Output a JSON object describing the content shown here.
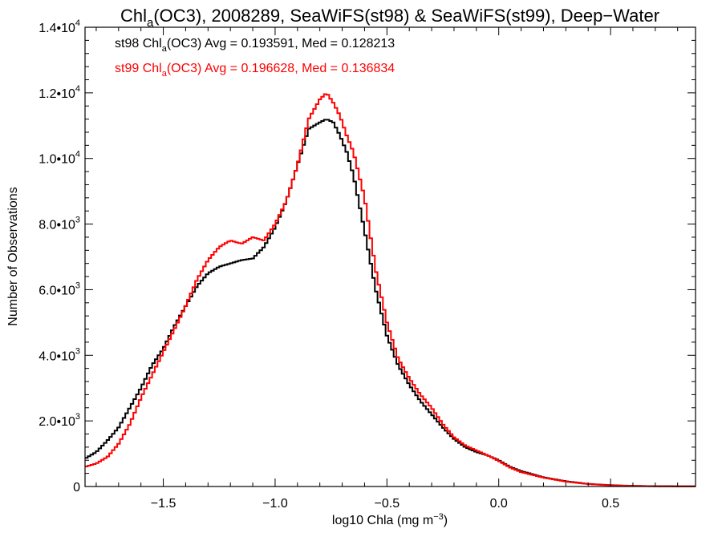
{
  "chart_data": {
    "type": "line",
    "title": {
      "pre": "Chl",
      "sub": "a",
      "post": "(OC3), 2008289, SeaWiFS(st98) & SeaWiFS(st99), Deep−Water"
    },
    "xlabel": {
      "pre": "log10 Chla (mg m",
      "sup": "−3",
      "post": ")"
    },
    "ylabel": "Number of Observations",
    "xlim": [
      -1.85,
      0.88
    ],
    "ylim": [
      0,
      14000
    ],
    "x_ticks": [
      {
        "value": -1.5,
        "label": "−1.5"
      },
      {
        "value": -1.0,
        "label": "−1.0"
      },
      {
        "value": -0.5,
        "label": "−0.5"
      },
      {
        "value": 0.0,
        "label": "0.0"
      },
      {
        "value": 0.5,
        "label": "0.5"
      }
    ],
    "y_ticks": [
      {
        "value": 0,
        "mant": "0",
        "exp": ""
      },
      {
        "value": 2000,
        "mant": "2.0•10",
        "exp": "3"
      },
      {
        "value": 4000,
        "mant": "4.0•10",
        "exp": "3"
      },
      {
        "value": 6000,
        "mant": "6.0•10",
        "exp": "3"
      },
      {
        "value": 8000,
        "mant": "8.0•10",
        "exp": "3"
      },
      {
        "value": 10000,
        "mant": "1.0•10",
        "exp": "4"
      },
      {
        "value": 12000,
        "mant": "1.2•10",
        "exp": "4"
      },
      {
        "value": 14000,
        "mant": "1.4•10",
        "exp": "4"
      }
    ],
    "annotations": [
      {
        "pre": "st98 Chl",
        "sub": "a",
        "post": "(OC3) Avg = 0.193591, Med = 0.128213",
        "color": "#000000"
      },
      {
        "pre": "st99 Chl",
        "sub": "a",
        "post": "(OC3) Avg = 0.196628, Med = 0.136834",
        "color": "#ff0000"
      }
    ],
    "grid": false,
    "step": "histogram",
    "series": [
      {
        "color": "#000000",
        "x": [
          -1.85,
          -1.8,
          -1.75,
          -1.7,
          -1.65,
          -1.6,
          -1.55,
          -1.5,
          -1.45,
          -1.4,
          -1.35,
          -1.3,
          -1.25,
          -1.2,
          -1.15,
          -1.1,
          -1.05,
          -1.0,
          -0.95,
          -0.9,
          -0.85,
          -0.8,
          -0.77,
          -0.74,
          -0.71,
          -0.68,
          -0.65,
          -0.6,
          -0.55,
          -0.5,
          -0.45,
          -0.4,
          -0.35,
          -0.3,
          -0.25,
          -0.2,
          -0.15,
          -0.1,
          -0.05,
          0.0,
          0.05,
          0.1,
          0.2,
          0.3,
          0.4,
          0.5,
          0.6,
          0.7,
          0.88
        ],
        "y": [
          850,
          1050,
          1400,
          1800,
          2400,
          3000,
          3700,
          4200,
          4900,
          5500,
          6100,
          6500,
          6700,
          6800,
          6900,
          6950,
          7300,
          7900,
          8700,
          9800,
          10900,
          11100,
          11200,
          11100,
          10700,
          10200,
          9500,
          7800,
          6000,
          4600,
          3700,
          3100,
          2600,
          2200,
          1800,
          1450,
          1200,
          1050,
          950,
          800,
          600,
          470,
          280,
          160,
          80,
          40,
          20,
          10,
          5
        ]
      },
      {
        "color": "#ff0000",
        "x": [
          -1.85,
          -1.8,
          -1.75,
          -1.7,
          -1.65,
          -1.6,
          -1.55,
          -1.5,
          -1.45,
          -1.4,
          -1.35,
          -1.3,
          -1.25,
          -1.2,
          -1.15,
          -1.1,
          -1.05,
          -1.0,
          -0.95,
          -0.9,
          -0.85,
          -0.8,
          -0.77,
          -0.74,
          -0.71,
          -0.68,
          -0.65,
          -0.6,
          -0.55,
          -0.5,
          -0.45,
          -0.4,
          -0.35,
          -0.3,
          -0.25,
          -0.2,
          -0.15,
          -0.1,
          -0.05,
          0.0,
          0.05,
          0.1,
          0.2,
          0.3,
          0.4,
          0.5,
          0.6,
          0.7,
          0.88
        ],
        "y": [
          600,
          700,
          900,
          1300,
          1900,
          2700,
          3400,
          4100,
          4800,
          5500,
          6300,
          6900,
          7300,
          7500,
          7400,
          7600,
          7500,
          8000,
          8700,
          9800,
          11200,
          11800,
          12000,
          11700,
          11300,
          10700,
          10200,
          8800,
          6600,
          5000,
          3900,
          3300,
          2800,
          2400,
          1900,
          1500,
          1250,
          1100,
          950,
          780,
          580,
          440,
          270,
          150,
          75,
          35,
          18,
          8,
          4
        ]
      }
    ]
  }
}
